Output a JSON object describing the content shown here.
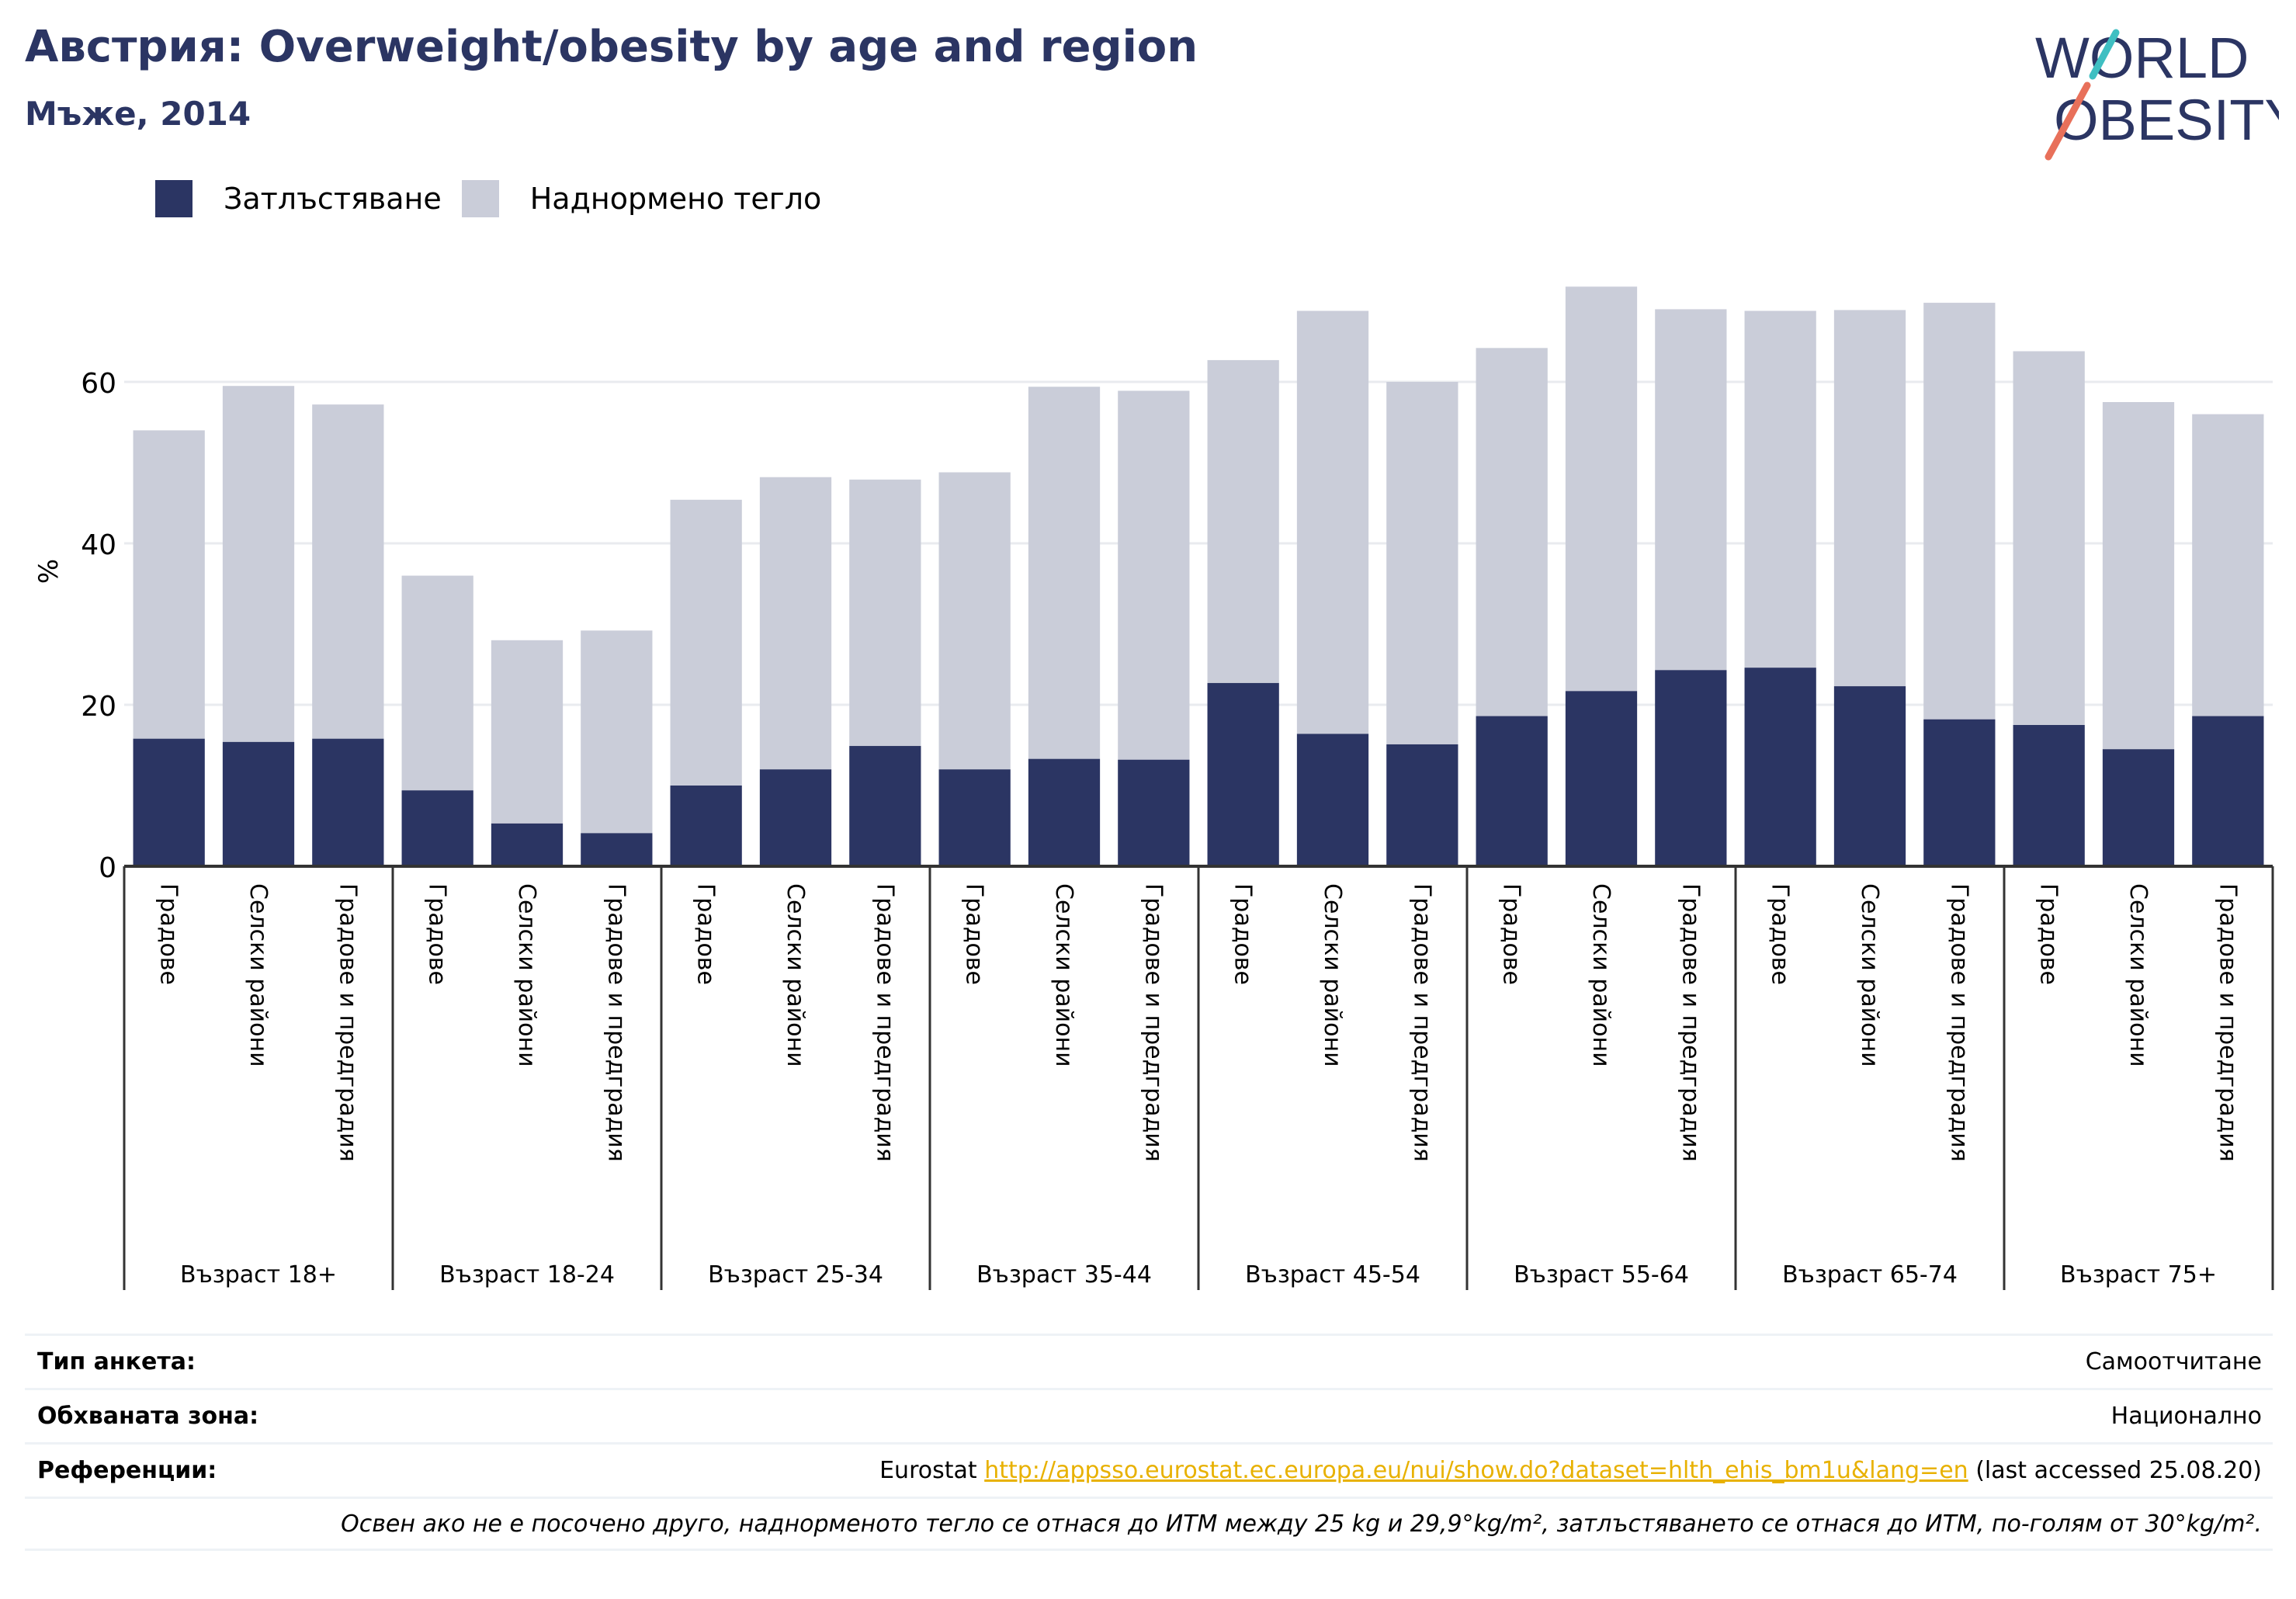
{
  "header": {
    "title": "Австрия: Overweight/obesity by age and region",
    "subtitle": "Мъже, 2014"
  },
  "logo": {
    "line1": "WORLD",
    "line2": "OBESITY",
    "colors": {
      "navy": "#2b3563",
      "teal": "#3fbfc2",
      "coral": "#e8705a"
    }
  },
  "legend": {
    "obesity_label": "Затлъстяване",
    "overweight_label": "Наднормено тегло",
    "obesity_color": "#2b3563",
    "overweight_color": "#cacdd9"
  },
  "chart_data": {
    "type": "bar",
    "stacked": true,
    "ylabel": "%",
    "ylim": [
      0,
      75
    ],
    "yticks": [
      0,
      20,
      40,
      60
    ],
    "grid": true,
    "legend_position": "top-left",
    "groups": [
      {
        "label": "Възраст 18+",
        "categories": [
          "Градове",
          "Селски райони",
          "Градове и предградия"
        ],
        "obesity": [
          15.8,
          15.4,
          15.8
        ],
        "total": [
          54.0,
          59.5,
          57.2
        ]
      },
      {
        "label": "Възраст 18-24",
        "categories": [
          "Градове",
          "Селски райони",
          "Градове и предградия"
        ],
        "obesity": [
          9.4,
          5.3,
          4.1
        ],
        "total": [
          36.0,
          28.0,
          29.2
        ]
      },
      {
        "label": "Възраст 25-34",
        "categories": [
          "Градове",
          "Селски райони",
          "Градове и предградия"
        ],
        "obesity": [
          10.0,
          12.0,
          14.9
        ],
        "total": [
          45.4,
          48.2,
          47.9
        ]
      },
      {
        "label": "Възраст 35-44",
        "categories": [
          "Градове",
          "Селски райони",
          "Градове и предградия"
        ],
        "obesity": [
          12.0,
          13.3,
          13.2
        ],
        "total": [
          48.8,
          59.4,
          58.9
        ]
      },
      {
        "label": "Възраст 45-54",
        "categories": [
          "Градове",
          "Селски райони",
          "Градове и предградия"
        ],
        "obesity": [
          22.7,
          16.4,
          15.1
        ],
        "total": [
          62.7,
          68.8,
          60.0
        ]
      },
      {
        "label": "Възраст 55-64",
        "categories": [
          "Градове",
          "Селски райони",
          "Градове и предградия"
        ],
        "obesity": [
          18.6,
          21.7,
          24.3
        ],
        "total": [
          64.2,
          71.8,
          69.0
        ]
      },
      {
        "label": "Възраст 65-74",
        "categories": [
          "Градове",
          "Селски райони",
          "Градове и предградия"
        ],
        "obesity": [
          24.6,
          22.3,
          18.2
        ],
        "total": [
          68.8,
          68.9,
          69.8
        ]
      },
      {
        "label": "Възраст 75+",
        "categories": [
          "Градове",
          "Селски райони",
          "Градове и предградия"
        ],
        "obesity": [
          17.5,
          14.5,
          18.6
        ],
        "total": [
          63.8,
          57.5,
          56.0
        ]
      }
    ]
  },
  "info": {
    "survey_label": "Тип анкета:",
    "survey_value": "Самоотчитане",
    "coverage_label": "Обхваната зона:",
    "coverage_value": "Национално",
    "refs_label": "Референции:",
    "refs_prefix": "Eurostat",
    "refs_link": "http://appsso.eurostat.ec.europa.eu/nui/show.do?dataset=hlth_ehis_bm1u&lang=en",
    "refs_suffix": "(last accessed 25.08.20)",
    "note": "Освен ако не е посочено друго, наднорменото тегло се отнася до ИТМ между 25 kg и 29,9°kg/m², затлъстяването се отнася до ИТМ, по-голям от 30°kg/m²."
  }
}
